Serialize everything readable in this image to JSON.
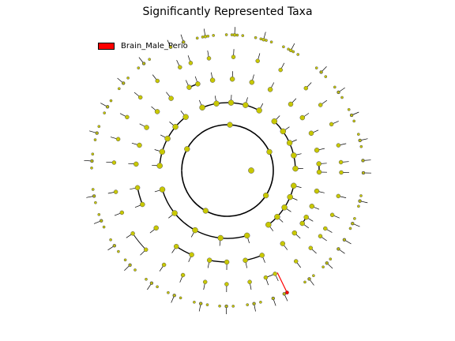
{
  "figure": {
    "title": "Significantly Represented Taxa"
  },
  "legend": {
    "label": "Brain_Male_Perio",
    "color": "#ff0000"
  },
  "colors": {
    "node_fill": "#c8c800",
    "edge": "#000000",
    "highlight": "#ff0000"
  }
}
